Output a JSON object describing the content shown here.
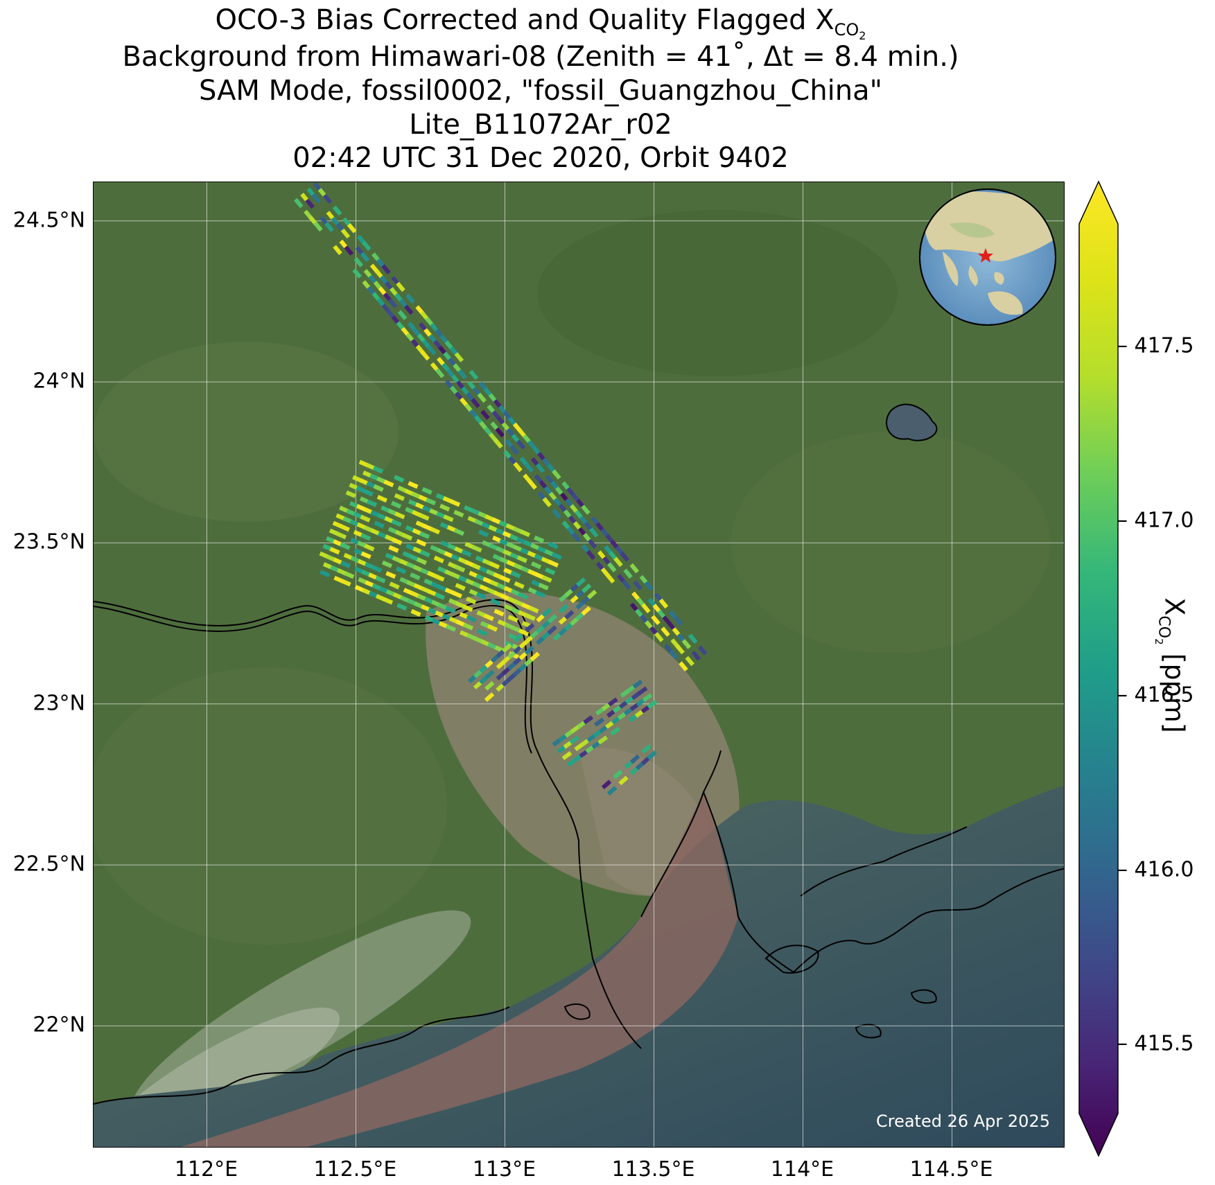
{
  "title": {
    "line1_prefix": "OCO-3 Bias Corrected and Quality Flagged X",
    "line1_sub": "CO",
    "line1_subsub": "2",
    "line2": "Background from Himawari-08 (Zenith = 41˚, Δt =  8.4 min.)",
    "line3": "SAM Mode, fossil0002, \"fossil_Guangzhou_China\"",
    "line4": "Lite_B11072Ar_r02",
    "line5": "02:42 UTC 31 Dec 2020, Orbit 9402"
  },
  "map": {
    "lon_range": [
      111.62,
      114.88
    ],
    "lat_range": [
      21.62,
      24.62
    ],
    "lat_ticks": [
      {
        "value": 24.5,
        "label": "24.5°N"
      },
      {
        "value": 24.0,
        "label": "24°N"
      },
      {
        "value": 23.5,
        "label": "23.5°N"
      },
      {
        "value": 23.0,
        "label": "23°N"
      },
      {
        "value": 22.5,
        "label": "22.5°N"
      },
      {
        "value": 22.0,
        "label": "22°N"
      }
    ],
    "lon_ticks": [
      {
        "value": 112.0,
        "label": "112°E"
      },
      {
        "value": 112.5,
        "label": "112.5°E"
      },
      {
        "value": 113.0,
        "label": "113°E"
      },
      {
        "value": 113.5,
        "label": "113.5°E"
      },
      {
        "value": 114.0,
        "label": "114°E"
      },
      {
        "value": 114.5,
        "label": "114.5°E"
      }
    ],
    "gridlines": true,
    "inset_globe": "top-right",
    "target_marker": "red-star",
    "created_text": "Created 26 Apr 2025",
    "colors": {
      "land": "#4f6e3e",
      "urban": "#877f6a",
      "sea": "#3f5b6a",
      "river_plume": "#876660"
    },
    "xco2_swaths": [
      {
        "name": "northern-swath",
        "lon_start": 112.34,
        "lat_start": 24.58,
        "lon_end": 113.65,
        "lat_end": 23.12,
        "width_deg": 0.1,
        "min_ppm": 415.4,
        "max_ppm": 417.9
      },
      {
        "name": "western-cluster",
        "lon_start": 112.45,
        "lat_start": 23.58,
        "lon_end": 113.15,
        "lat_end": 23.3,
        "width_deg": 0.42,
        "min_ppm": 416.5,
        "max_ppm": 417.9
      },
      {
        "name": "central-cluster",
        "lon_start": 112.92,
        "lat_start": 23.05,
        "lon_end": 113.32,
        "lat_end": 23.38,
        "width_deg": 0.1,
        "min_ppm": 415.6,
        "max_ppm": 417.9
      },
      {
        "name": "southern-cluster",
        "lon_start": 113.2,
        "lat_start": 22.85,
        "lon_end": 113.5,
        "lat_end": 23.05,
        "width_deg": 0.1,
        "min_ppm": 415.5,
        "max_ppm": 417.5
      },
      {
        "name": "southern-tail",
        "lon_start": 113.35,
        "lat_start": 22.74,
        "lon_end": 113.52,
        "lat_end": 22.88,
        "width_deg": 0.06,
        "min_ppm": 415.5,
        "max_ppm": 417.6
      }
    ]
  },
  "colorbar": {
    "cmap": "viridis",
    "min": 415.3,
    "max": 417.85,
    "extend": "both",
    "ticks": [
      {
        "value": 415.5,
        "label": "415.5"
      },
      {
        "value": 416.0,
        "label": "416.0"
      },
      {
        "value": 416.5,
        "label": "416.5"
      },
      {
        "value": 417.0,
        "label": "417.0"
      },
      {
        "value": 417.5,
        "label": "417.5"
      }
    ],
    "label_prefix": "X",
    "label_sub": "CO",
    "label_subsub": "2",
    "label_suffix": " [ppm]"
  }
}
